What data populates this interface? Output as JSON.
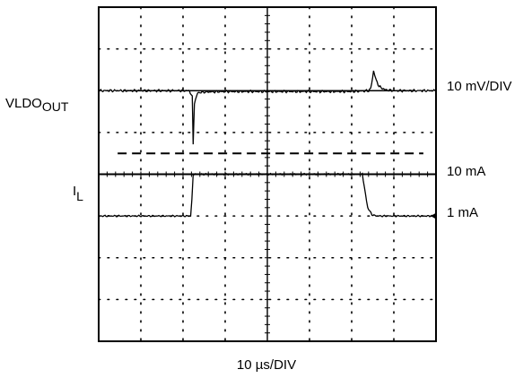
{
  "chart_data": {
    "type": "line",
    "title": "",
    "xlabel": "10 µs/DIV",
    "x_divisions": 8,
    "y_divisions": 8,
    "x_unit_per_div": 10,
    "x_unit": "µs",
    "grid": true,
    "series": [
      {
        "name": "VLDO",
        "name_subscript": "OUT",
        "scale_label": "10 mV/DIV",
        "baseline_div": 2.0,
        "points": [
          [
            0.0,
            2.0
          ],
          [
            2.15,
            2.0
          ],
          [
            2.22,
            2.15
          ],
          [
            2.24,
            3.3
          ],
          [
            2.27,
            2.3
          ],
          [
            2.35,
            2.05
          ],
          [
            2.5,
            2.03
          ],
          [
            3.0,
            2.02
          ],
          [
            4.0,
            2.02
          ],
          [
            5.0,
            2.02
          ],
          [
            6.0,
            2.02
          ],
          [
            6.4,
            2.0
          ],
          [
            6.45,
            1.95
          ],
          [
            6.52,
            1.55
          ],
          [
            6.58,
            1.75
          ],
          [
            6.65,
            1.9
          ],
          [
            6.8,
            1.98
          ],
          [
            7.0,
            2.0
          ],
          [
            8.0,
            2.0
          ]
        ]
      },
      {
        "name": "I",
        "name_subscript": "L",
        "level_labels": [
          "10 mA",
          "1 mA"
        ],
        "high_level_div": 4.0,
        "low_level_div": 5.0,
        "points": [
          [
            0.0,
            5.0
          ],
          [
            2.18,
            5.0
          ],
          [
            2.21,
            4.6
          ],
          [
            2.24,
            4.0
          ],
          [
            4.0,
            4.0
          ],
          [
            6.25,
            4.0
          ],
          [
            6.3,
            4.3
          ],
          [
            6.38,
            4.8
          ],
          [
            6.48,
            4.97
          ],
          [
            6.6,
            5.0
          ],
          [
            8.0,
            5.0
          ]
        ]
      }
    ],
    "reference_lines": [
      {
        "style": "solid",
        "y_div": 2.0,
        "x_range_div": [
          0.6,
          7.5
        ]
      },
      {
        "style": "dashed",
        "y_div": 3.5,
        "x_range_div": [
          0.45,
          7.7
        ]
      }
    ]
  }
}
